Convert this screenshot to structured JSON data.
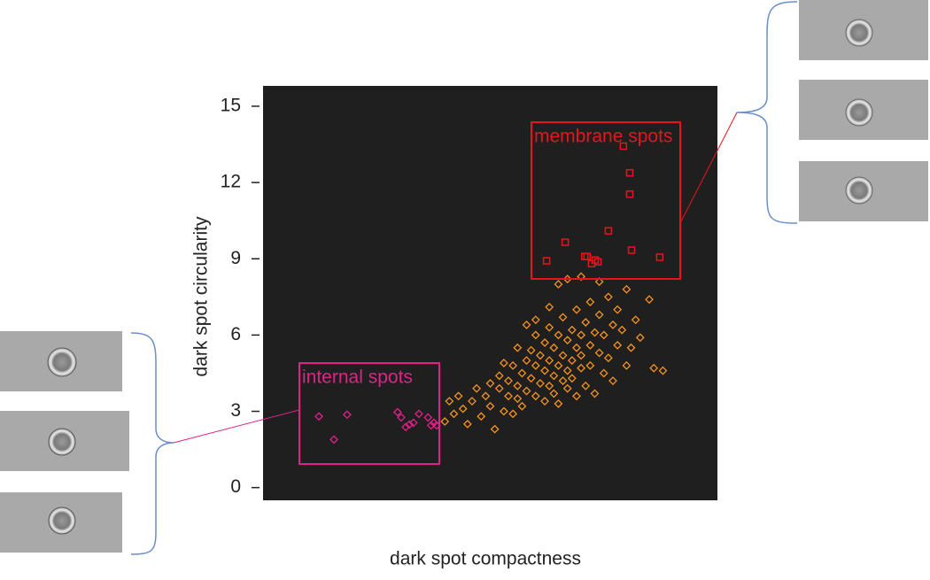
{
  "chart_data": {
    "type": "scatter",
    "xlabel": "dark spot compactness",
    "ylabel": "dark spot circularity",
    "xlim": [
      0,
      100
    ],
    "ylim": [
      -0.5,
      15.8
    ],
    "yticks": [
      0,
      3,
      6,
      9,
      12,
      15
    ],
    "series": [
      {
        "color": "#f7931e",
        "marker": "diamond",
        "x": [
          40,
          42,
          44,
          45,
          46,
          48,
          49,
          50,
          51,
          52,
          52,
          53,
          54,
          54,
          55,
          55,
          56,
          56,
          57,
          57,
          58,
          58,
          59,
          59,
          60,
          60,
          60,
          61,
          61,
          62,
          62,
          62,
          63,
          63,
          63,
          64,
          64,
          64,
          65,
          65,
          65,
          66,
          66,
          66,
          67,
          67,
          67,
          68,
          68,
          68,
          69,
          69,
          69,
          70,
          70,
          70,
          71,
          71,
          72,
          72,
          72,
          73,
          73,
          74,
          74,
          75,
          75,
          76,
          76,
          77,
          77,
          78,
          78,
          79,
          80,
          80,
          81,
          82,
          83,
          85,
          86,
          88,
          67,
          65,
          70,
          74,
          63,
          60,
          58,
          56,
          53,
          50,
          47,
          43,
          41
        ],
        "values": [
          2.6,
          2.9,
          3.1,
          2.5,
          3.4,
          2.8,
          3.6,
          3.2,
          2.3,
          3.9,
          4.4,
          3.0,
          3.6,
          4.2,
          2.9,
          4.8,
          3.5,
          4.0,
          4.5,
          3.2,
          5.0,
          3.8,
          4.3,
          5.4,
          3.6,
          4.8,
          6.0,
          4.1,
          5.2,
          3.4,
          4.6,
          5.7,
          4.0,
          5.0,
          6.3,
          3.7,
          4.4,
          5.5,
          4.8,
          6.0,
          3.3,
          4.2,
          5.2,
          6.7,
          4.6,
          5.8,
          3.9,
          5.0,
          6.2,
          4.3,
          5.5,
          7.0,
          3.6,
          4.7,
          6.0,
          5.2,
          6.5,
          4.0,
          5.6,
          7.3,
          4.8,
          6.1,
          3.7,
          5.3,
          6.8,
          4.5,
          6.0,
          7.5,
          5.1,
          6.4,
          4.2,
          5.6,
          7.0,
          6.2,
          4.8,
          7.8,
          5.5,
          6.6,
          5.9,
          7.4,
          4.7,
          4.6,
          8.2,
          8.0,
          8.3,
          8.1,
          7.1,
          6.6,
          6.4,
          5.5,
          4.9,
          4.1,
          3.9,
          3.6,
          3.4
        ]
      },
      {
        "color": "#e8141c",
        "marker": "square",
        "x": [
          62.4,
          66.5,
          70.8,
          71.3,
          72.3,
          73.1,
          73.7,
          76.0,
          79.3,
          80.7,
          80.7,
          81.1,
          87.3
        ],
        "values": [
          8.92,
          9.65,
          9.09,
          9.09,
          8.81,
          8.95,
          8.88,
          10.1,
          13.43,
          12.38,
          11.54,
          9.34,
          9.06
        ]
      },
      {
        "color": "#e0218a",
        "marker": "diamond",
        "x": [
          12.3,
          15.6,
          18.5,
          29.6,
          30.4,
          31.4,
          32.2,
          33.1,
          34.3,
          36.3,
          37.0,
          37.6,
          38.2
        ],
        "values": [
          2.8,
          1.89,
          2.87,
          2.97,
          2.76,
          2.38,
          2.48,
          2.55,
          2.9,
          2.76,
          2.45,
          2.55,
          2.45
        ]
      }
    ],
    "annotations": [
      {
        "text": "membrane spots",
        "color": "#e8141c"
      },
      {
        "text": "internal spots",
        "color": "#e0218a"
      }
    ]
  }
}
